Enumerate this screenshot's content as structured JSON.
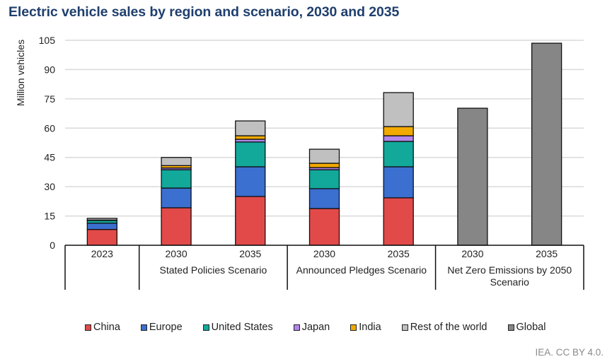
{
  "title": "Electric vehicle sales by region and scenario, 2030 and 2035",
  "credit": "IEA. CC BY 4.0.",
  "chart_data": {
    "type": "bar",
    "stacked": true,
    "title": "Electric vehicle sales by region and scenario, 2030 and 2035",
    "xlabel": "",
    "ylabel": "Million vehicles",
    "ylim": [
      0,
      105
    ],
    "yticks": [
      0,
      15,
      30,
      45,
      60,
      75,
      90,
      105
    ],
    "grid": true,
    "legend_position": "bottom",
    "categories": [
      "2023",
      "2030",
      "2035",
      "2030",
      "2035",
      "2030",
      "2035"
    ],
    "groups": [
      {
        "label": "",
        "members": [
          0
        ]
      },
      {
        "label": "Stated Policies Scenario",
        "members": [
          1,
          2
        ]
      },
      {
        "label": "Announced Pledges Scenario",
        "members": [
          3,
          4
        ]
      },
      {
        "label": "Net Zero Emissions by 2050 Scenario",
        "members": [
          5,
          6
        ]
      }
    ],
    "series": [
      {
        "name": "China",
        "color": "#e24a4a",
        "values": [
          8.1,
          19.2,
          25.0,
          18.8,
          24.3,
          null,
          null
        ]
      },
      {
        "name": "Europe",
        "color": "#3b6fd0",
        "values": [
          3.2,
          10.1,
          15.2,
          10.2,
          15.9,
          null,
          null
        ]
      },
      {
        "name": "United States",
        "color": "#12a89a",
        "values": [
          1.4,
          9.4,
          12.7,
          9.7,
          13.0,
          null,
          null
        ]
      },
      {
        "name": "Japan",
        "color": "#b286ea",
        "values": [
          0.1,
          0.9,
          1.4,
          1.1,
          2.9,
          null,
          null
        ]
      },
      {
        "name": "India",
        "color": "#f2a900",
        "values": [
          0.1,
          1.2,
          1.8,
          2.2,
          4.7,
          null,
          null
        ]
      },
      {
        "name": "Rest of the world",
        "color": "#c0c0c0",
        "values": [
          0.9,
          4.2,
          7.6,
          7.2,
          17.4,
          null,
          null
        ]
      },
      {
        "name": "Global",
        "color": "#868686",
        "values": [
          null,
          null,
          null,
          null,
          null,
          70.2,
          103.5
        ]
      }
    ]
  }
}
